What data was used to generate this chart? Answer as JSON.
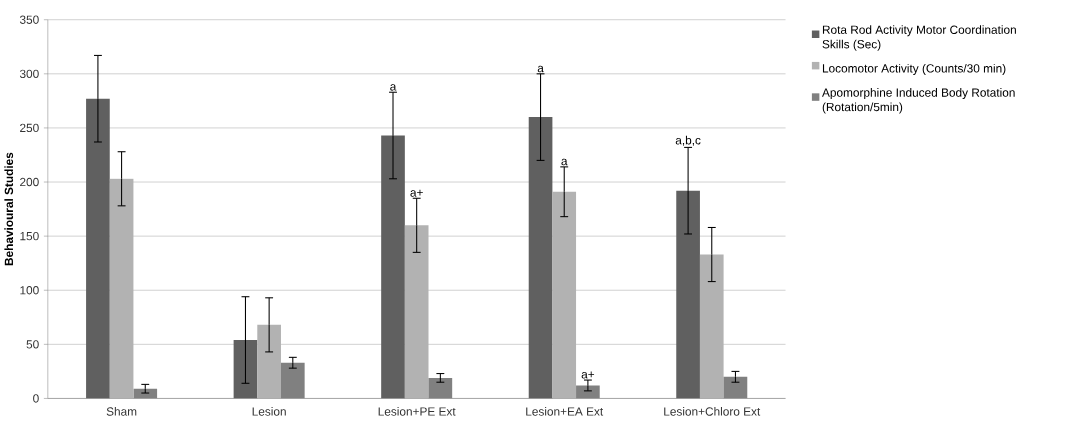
{
  "chart_data": {
    "type": "bar",
    "ylabel": "Behavioural Studies",
    "categories": [
      "Sham",
      "Lesion",
      "Lesion+PE Ext",
      "Lesion+EA Ext",
      "Lesion+Chloro Ext"
    ],
    "series": [
      {
        "name": "Rota Rod Activity Motor Coordination Skills (Sec)",
        "color": "#606060",
        "values": [
          277,
          54,
          243,
          260,
          192
        ],
        "errors": [
          40,
          40,
          40,
          40,
          40
        ]
      },
      {
        "name": "Locomotor Activity (Counts/30 min)",
        "color": "#b2b2b2",
        "values": [
          203,
          68,
          160,
          191,
          133
        ],
        "errors": [
          25,
          25,
          25,
          23,
          25
        ]
      },
      {
        "name": "Apomorphine Induced Body Rotation (Rotation/5min)",
        "color": "#808080",
        "values": [
          9,
          33,
          19,
          12,
          20
        ],
        "errors": [
          4,
          5,
          4,
          5,
          5
        ]
      }
    ],
    "ylim": [
      0,
      350
    ],
    "yticks": [
      0,
      50,
      100,
      150,
      200,
      250,
      300,
      350
    ],
    "grid": "y",
    "legend": "right",
    "annotations": [
      "a",
      "a+",
      "a",
      "a",
      "a+",
      "a,b,c"
    ]
  }
}
